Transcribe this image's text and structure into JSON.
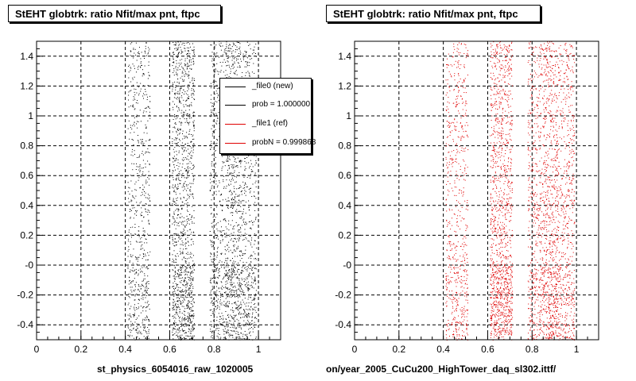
{
  "panels": [
    {
      "title": "StEHT globtrk: ratio Nfit/max pnt, ftpc",
      "file_label": "st_physics_6054016_raw_1020005",
      "marker_color": "#000000"
    },
    {
      "title": "StEHT globtrk: ratio Nfit/max pnt, ftpc",
      "file_label": "on/year_2005_CuCu200_HighTower_daq_sl302.ittf/",
      "marker_color": "#e00000"
    }
  ],
  "legend": {
    "entries": [
      {
        "label": "_file0 (new)",
        "color": "#000000"
      },
      {
        "label": "prob = 1.000000",
        "color": "#000000"
      },
      {
        "label": "_file1 (ref)",
        "color": "#e00000"
      },
      {
        "label": "probN = 0.999868",
        "color": "#e00000"
      }
    ]
  },
  "chart_data": [
    {
      "type": "scatter",
      "title": "StEHT globtrk: ratio Nfit/max pnt, ftpc",
      "xlabel": "st_physics_6054016_raw_1020005",
      "ylabel": "",
      "xlim": [
        0,
        1.1
      ],
      "ylim": [
        -0.5,
        1.5
      ],
      "x_ticks": [
        "0",
        "0.2",
        "0.4",
        "0.6",
        "0.8",
        "1"
      ],
      "y_ticks": [
        "-0.4",
        "-0.2",
        "-0",
        "0.2",
        "0.4",
        "0.6",
        "0.8",
        "1",
        "1.2",
        "1.4"
      ],
      "grid": true,
      "series": [
        {
          "name": "_file0 (new)",
          "color": "#000000",
          "x_bands": [
            [
              0.41,
              0.51,
              0.5
            ],
            [
              0.61,
              0.71,
              1.0
            ],
            [
              0.78,
              0.85,
              0.6
            ],
            [
              0.85,
              0.92,
              0.9
            ],
            [
              0.92,
              0.99,
              0.6
            ]
          ]
        }
      ]
    },
    {
      "type": "scatter",
      "title": "StEHT globtrk: ratio Nfit/max pnt, ftpc",
      "xlabel": "on/year_2005_CuCu200_HighTower_daq_sl302.ittf/",
      "ylabel": "",
      "xlim": [
        0,
        1.1
      ],
      "ylim": [
        -0.5,
        1.5
      ],
      "x_ticks": [
        "0",
        "0.2",
        "0.4",
        "0.6",
        "0.8",
        "1"
      ],
      "y_ticks": [
        "-0.4",
        "-0.2",
        "-0",
        "0.2",
        "0.4",
        "0.6",
        "0.8",
        "1",
        "1.2",
        "1.4"
      ],
      "grid": true,
      "series": [
        {
          "name": "_file1 (ref)",
          "color": "#e00000",
          "x_bands": [
            [
              0.41,
              0.51,
              0.5
            ],
            [
              0.61,
              0.71,
              1.0
            ],
            [
              0.78,
              0.85,
              0.6
            ],
            [
              0.85,
              0.92,
              0.9
            ],
            [
              0.92,
              0.99,
              0.6
            ]
          ]
        }
      ]
    }
  ]
}
